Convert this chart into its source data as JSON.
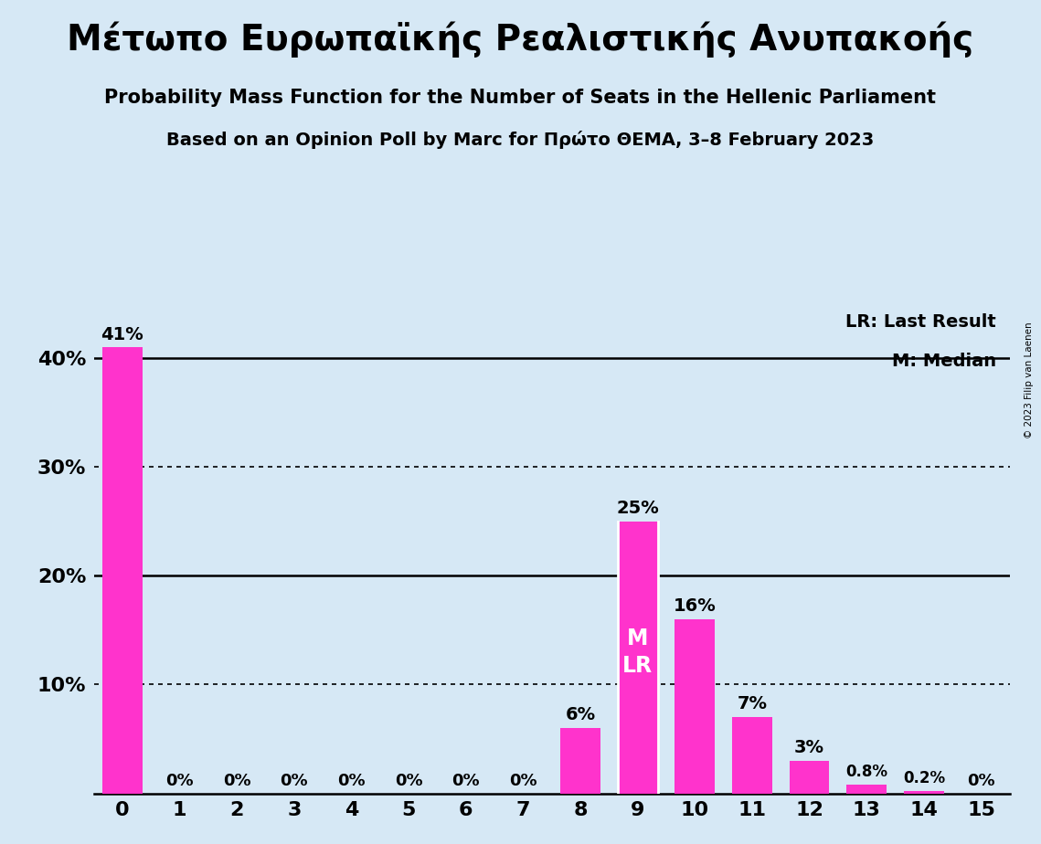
{
  "title_greek": "Μέτωπο Ευρωπαϊκής Ρεαλιστικής Ανυπακοής",
  "subtitle1": "Probability Mass Function for the Number of Seats in the Hellenic Parliament",
  "subtitle2": "Based on an Opinion Poll by Marc for Πρώτο ΘΕΜΑ, 3–8 February 2023",
  "copyright": "© 2023 Filip van Laenen",
  "categories": [
    0,
    1,
    2,
    3,
    4,
    5,
    6,
    7,
    8,
    9,
    10,
    11,
    12,
    13,
    14,
    15
  ],
  "values": [
    41,
    0,
    0,
    0,
    0,
    0,
    0,
    0,
    6,
    25,
    16,
    7,
    3,
    0.8,
    0.2,
    0
  ],
  "bar_color": "#FF33CC",
  "background_color": "#D6E8F5",
  "text_color": "#000000",
  "median_seat": 9,
  "last_result_seat": 9,
  "legend_lr": "LR: Last Result",
  "legend_m": "M: Median",
  "yticks": [
    0,
    10,
    20,
    30,
    40
  ],
  "ylabels": [
    "",
    "10%",
    "20%",
    "30%",
    "40%"
  ],
  "hline_solid": [
    20,
    40
  ],
  "hline_dotted": [
    10,
    30
  ],
  "xlim": [
    -0.5,
    15.5
  ],
  "ylim": [
    0,
    45
  ]
}
